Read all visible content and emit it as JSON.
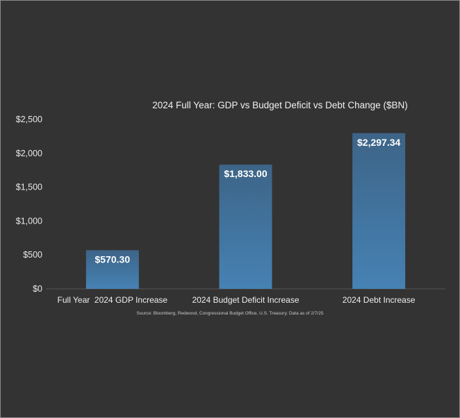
{
  "chart_data": {
    "type": "bar",
    "title": "2024 Full Year: GDP vs Budget Deficit vs Debt Change ($BN)",
    "xlabel": "",
    "ylabel": "",
    "categories": [
      "Full Year  2024 GDP Increase",
      "2024 Budget Deficit Increase",
      "2024 Debt Increase"
    ],
    "values": [
      570.3,
      1833.0,
      2297.34
    ],
    "data_labels": [
      "$570.30",
      "$1,833.00",
      "$2,297.34"
    ],
    "ylim": [
      0,
      2500
    ],
    "yticks": [
      0,
      500,
      1000,
      1500,
      2000,
      2500
    ],
    "ytick_labels": [
      "$0",
      "$500",
      "$1,000",
      "$1,500",
      "$2,000",
      "$2,500"
    ],
    "grid": false,
    "legend": "none",
    "colors": {
      "background": "#333333",
      "bar_top": "#3d6487",
      "bar_bottom": "#4682b4",
      "axis": "#555555"
    },
    "source_note": "Source: Bloomberg, Redwood, Congressional Budget Office, U.S. Treasury. Data as of 2/7/25"
  }
}
